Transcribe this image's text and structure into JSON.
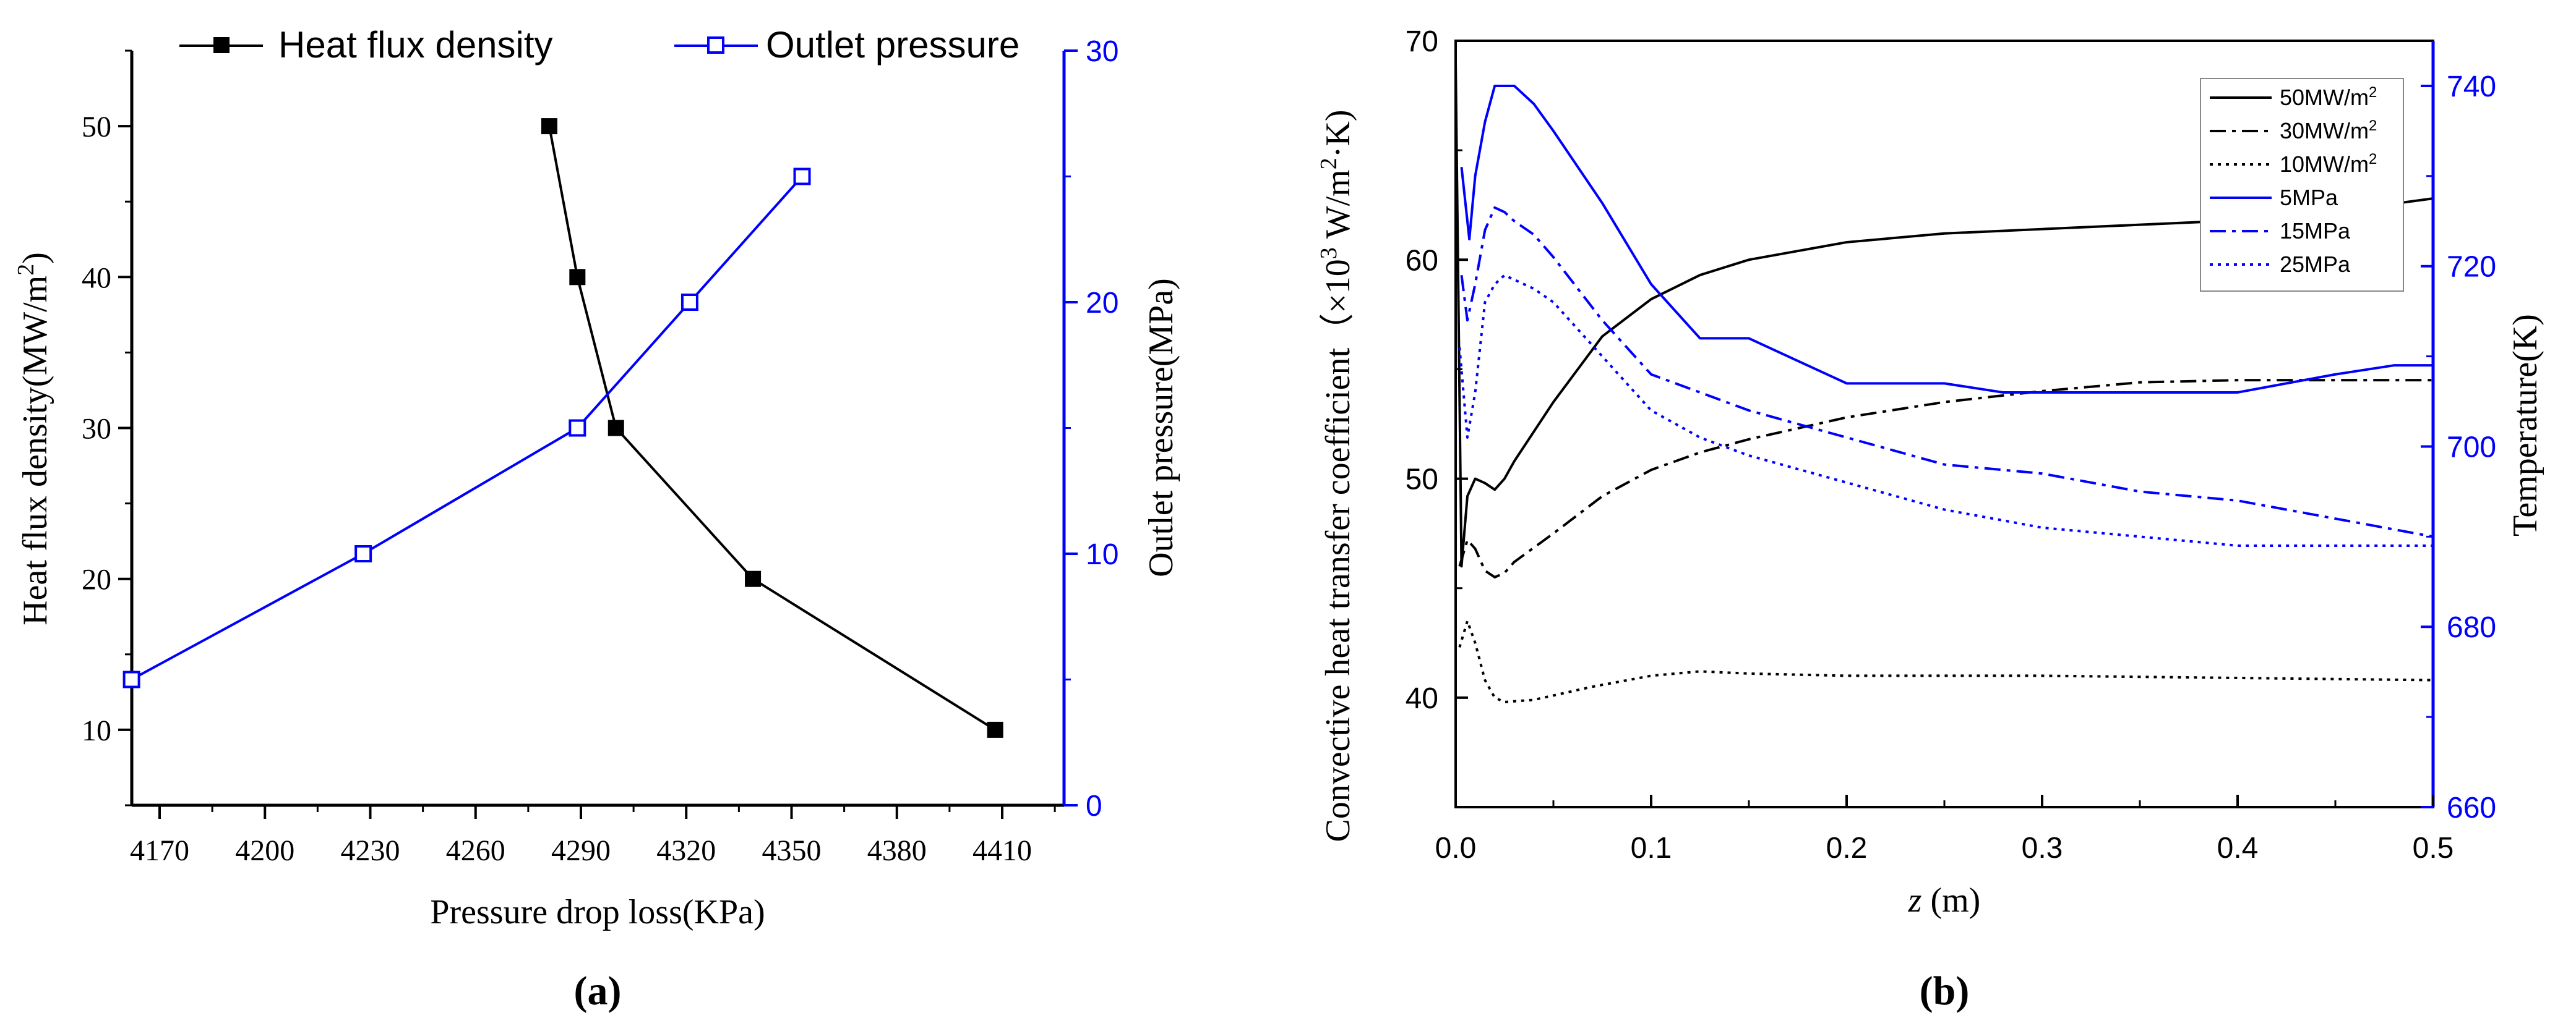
{
  "colors": {
    "black": "#000000",
    "blue": "#0000ff"
  },
  "chart_data": [
    {
      "panel": "a",
      "panel_label": "(a)",
      "type": "line",
      "xlabel": "Pressure drop loss(KPa)",
      "ylabel_left": "Heat flux density(MW/m²)",
      "ylabel_left_main": "Heat flux density(MW/m",
      "ylabel_left_sup": "2",
      "ylabel_left_end": ")",
      "ylabel_right": "Outlet pressure(MPa)",
      "xlim": [
        4150,
        4425
      ],
      "xticks": [
        "4170",
        "4200",
        "4230",
        "4260",
        "4290",
        "4320",
        "4350",
        "4380",
        "4410"
      ],
      "ylim_left": [
        5,
        55
      ],
      "yticks_left": [
        "10",
        "20",
        "30",
        "40",
        "50"
      ],
      "ylim_right": [
        0,
        30
      ],
      "yticks_right": [
        "0",
        "10",
        "20",
        "30"
      ],
      "series": [
        {
          "name": "Heat flux density",
          "axis": "left",
          "color": "#000000",
          "marker": "filled-square",
          "x": [
            4281,
            4289,
            4300,
            4339,
            4408
          ],
          "y": [
            50,
            40,
            30,
            20,
            10
          ]
        },
        {
          "name": "Outlet pressure",
          "axis": "right",
          "color": "#0000ff",
          "marker": "open-square",
          "x": [
            4162,
            4228,
            4289,
            4321,
            4353
          ],
          "y": [
            5,
            10,
            15,
            20,
            25
          ]
        }
      ]
    },
    {
      "panel": "b",
      "panel_label": "(b)",
      "type": "line",
      "xlabel_italic": "z",
      "xlabel_rest": " (m)",
      "ylabel_left": "Convective heat transfer coefficient（×10³ W/m²·K)",
      "ylabel_left_main": "Convective heat transfer coefficient（×10",
      "ylabel_left_sup1": "3",
      "ylabel_left_mid": " W/m",
      "ylabel_left_sup2": "2",
      "ylabel_left_end": "·K)",
      "ylabel_right": "Temperature(K)",
      "xlim": [
        0,
        0.5
      ],
      "xticks": [
        "0.0",
        "0.1",
        "0.2",
        "0.3",
        "0.4",
        "0.5"
      ],
      "ylim_left": [
        35,
        70
      ],
      "yticks_left": [
        "40",
        "50",
        "60",
        "70"
      ],
      "ylim_right": [
        660,
        745
      ],
      "yticks_right": [
        "660",
        "680",
        "700",
        "720",
        "740"
      ],
      "legend_position": "top-right",
      "series": [
        {
          "name": "50MW/m²",
          "name_main": "50MW/m",
          "name_sup": "2",
          "axis": "left",
          "color": "#000000",
          "dash": "solid",
          "x": [
            0,
            0.003,
            0.006,
            0.01,
            0.015,
            0.02,
            0.025,
            0.03,
            0.05,
            0.075,
            0.1,
            0.125,
            0.15,
            0.2,
            0.25,
            0.3,
            0.35,
            0.4,
            0.45,
            0.5
          ],
          "y": [
            69,
            46,
            49.2,
            50,
            49.8,
            49.5,
            50,
            50.8,
            53.5,
            56.5,
            58.2,
            59.3,
            60,
            60.8,
            61.2,
            61.4,
            61.6,
            61.8,
            62.2,
            62.8
          ]
        },
        {
          "name": "30MW/m²",
          "name_main": "30MW/m",
          "name_sup": "2",
          "axis": "left",
          "color": "#000000",
          "dash": "dashdot",
          "x": [
            0.002,
            0.006,
            0.01,
            0.015,
            0.02,
            0.025,
            0.03,
            0.05,
            0.075,
            0.1,
            0.125,
            0.15,
            0.2,
            0.25,
            0.3,
            0.35,
            0.4,
            0.45,
            0.5
          ],
          "y": [
            46,
            47.2,
            46.8,
            45.8,
            45.5,
            45.7,
            46.2,
            47.5,
            49.2,
            50.4,
            51.2,
            51.8,
            52.8,
            53.5,
            54,
            54.4,
            54.5,
            54.5,
            54.5
          ]
        },
        {
          "name": "10MW/m²",
          "name_main": "10MW/m",
          "name_sup": "2",
          "axis": "left",
          "color": "#000000",
          "dash": "dotted",
          "x": [
            0.002,
            0.006,
            0.01,
            0.015,
            0.02,
            0.025,
            0.04,
            0.07,
            0.1,
            0.125,
            0.15,
            0.2,
            0.3,
            0.4,
            0.5
          ],
          "y": [
            42.3,
            43.5,
            42.5,
            40.8,
            40,
            39.8,
            39.9,
            40.5,
            41,
            41.2,
            41.1,
            41,
            41,
            40.9,
            40.8
          ]
        },
        {
          "name": "5MPa",
          "axis": "right",
          "color": "#0000ff",
          "dash": "solid",
          "x": [
            0.003,
            0.007,
            0.01,
            0.015,
            0.02,
            0.025,
            0.03,
            0.04,
            0.05,
            0.075,
            0.1,
            0.125,
            0.15,
            0.2,
            0.25,
            0.28,
            0.3,
            0.35,
            0.4,
            0.45,
            0.48,
            0.5
          ],
          "y": [
            731,
            723,
            730,
            736,
            740,
            740,
            740,
            738,
            735,
            727,
            718,
            712,
            712,
            707,
            707,
            706,
            706,
            706,
            706,
            708,
            709,
            709
          ]
        },
        {
          "name": "15MPa",
          "axis": "right",
          "color": "#0000ff",
          "dash": "dashdot",
          "x": [
            0.003,
            0.006,
            0.01,
            0.015,
            0.02,
            0.025,
            0.03,
            0.04,
            0.05,
            0.075,
            0.1,
            0.125,
            0.15,
            0.2,
            0.25,
            0.3,
            0.35,
            0.4,
            0.45,
            0.5
          ],
          "y": [
            719,
            714,
            718,
            724,
            726.5,
            726,
            725,
            723.5,
            721,
            714,
            708,
            706,
            704,
            701,
            698,
            697,
            695,
            694,
            692,
            690
          ]
        },
        {
          "name": "25MPa",
          "axis": "right",
          "color": "#0000ff",
          "dash": "dotted",
          "x": [
            0.002,
            0.006,
            0.01,
            0.015,
            0.02,
            0.025,
            0.03,
            0.04,
            0.05,
            0.075,
            0.1,
            0.125,
            0.15,
            0.2,
            0.25,
            0.3,
            0.35,
            0.4,
            0.45,
            0.5
          ],
          "y": [
            711,
            701,
            706,
            716,
            718,
            719,
            718.5,
            717.5,
            716,
            710,
            704,
            701,
            699,
            696,
            693,
            691,
            690,
            689,
            689,
            689
          ]
        }
      ]
    }
  ]
}
